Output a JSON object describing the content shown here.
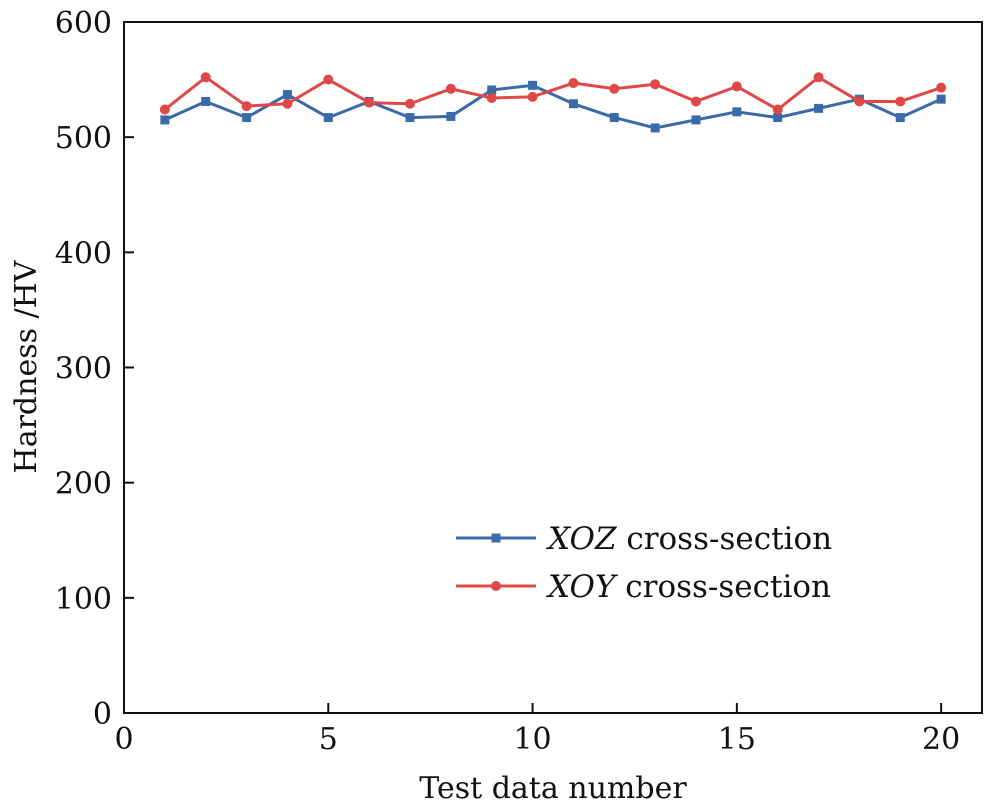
{
  "chart_data": {
    "type": "line",
    "title": "",
    "xlabel": "Test data number",
    "ylabel": "Hardness /HV",
    "xlim": [
      0,
      21
    ],
    "ylim": [
      0,
      600
    ],
    "xticks": [
      0,
      5,
      10,
      15,
      20
    ],
    "yticks": [
      0,
      100,
      200,
      300,
      400,
      500,
      600
    ],
    "xtick_labels": [
      "0",
      "5",
      "10",
      "15",
      "20"
    ],
    "ytick_labels": [
      "0",
      "100",
      "200",
      "300",
      "400",
      "500",
      "600"
    ],
    "grid": false,
    "legend_position": "lower-right",
    "x": [
      1,
      2,
      3,
      4,
      5,
      6,
      7,
      8,
      9,
      10,
      11,
      12,
      13,
      14,
      15,
      16,
      17,
      18,
      19,
      20
    ],
    "series": [
      {
        "name": "XOZ cross-section",
        "name_italic": "XOZ",
        "name_rest": " cross-section",
        "color": "#3a6aa8",
        "marker": "square",
        "values": [
          515,
          531,
          517,
          537,
          517,
          531,
          517,
          518,
          541,
          545,
          529,
          517,
          508,
          515,
          522,
          517,
          525,
          533,
          517,
          533
        ]
      },
      {
        "name": "XOY cross-section",
        "name_italic": "XOY",
        "name_rest": " cross-section",
        "color": "#e04848",
        "marker": "circle",
        "values": [
          524,
          552,
          527,
          529,
          550,
          530,
          529,
          542,
          534,
          535,
          547,
          542,
          546,
          531,
          544,
          524,
          552,
          531,
          531,
          543
        ]
      }
    ]
  }
}
